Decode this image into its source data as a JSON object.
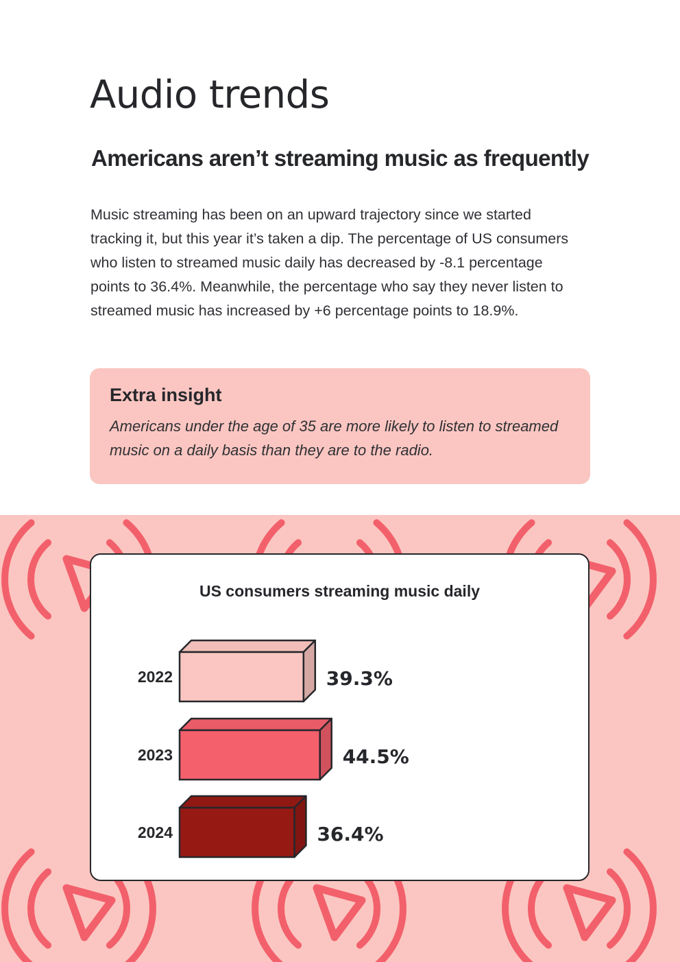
{
  "page": {
    "title": "Audio trends",
    "subtitle": "Americans aren’t streaming music as frequently",
    "body": "Music streaming has been on an upward trajectory since we started tracking it, but this year it’s taken a dip. The percentage of US consumers who listen to streamed music daily has decreased by -8.1 percentage points to 36.4%. Meanwhile, the percentage who say they never listen to streamed music has increased by +6 percentage points to 18.9%."
  },
  "insight": {
    "title": "Extra insight",
    "text": "Americans under the age of 35 are more likely to listen to streamed music on a daily basis than they are to the radio."
  },
  "decoration": {
    "background_color": "#fbc6c1",
    "icon_color": "#f2606b",
    "icon": "audio-play-waves-icon"
  },
  "chart_data": {
    "type": "bar",
    "orientation": "horizontal",
    "title": "US consumers streaming music daily",
    "categories": [
      "2022",
      "2023",
      "2024"
    ],
    "values": [
      39.3,
      44.5,
      36.4
    ],
    "labels": [
      "39.3%",
      "44.5%",
      "36.4%"
    ],
    "colors": [
      "#fbc6c1",
      "#f4606c",
      "#961914"
    ],
    "xlim": [
      0,
      100
    ],
    "grid": false,
    "legend": "none"
  }
}
